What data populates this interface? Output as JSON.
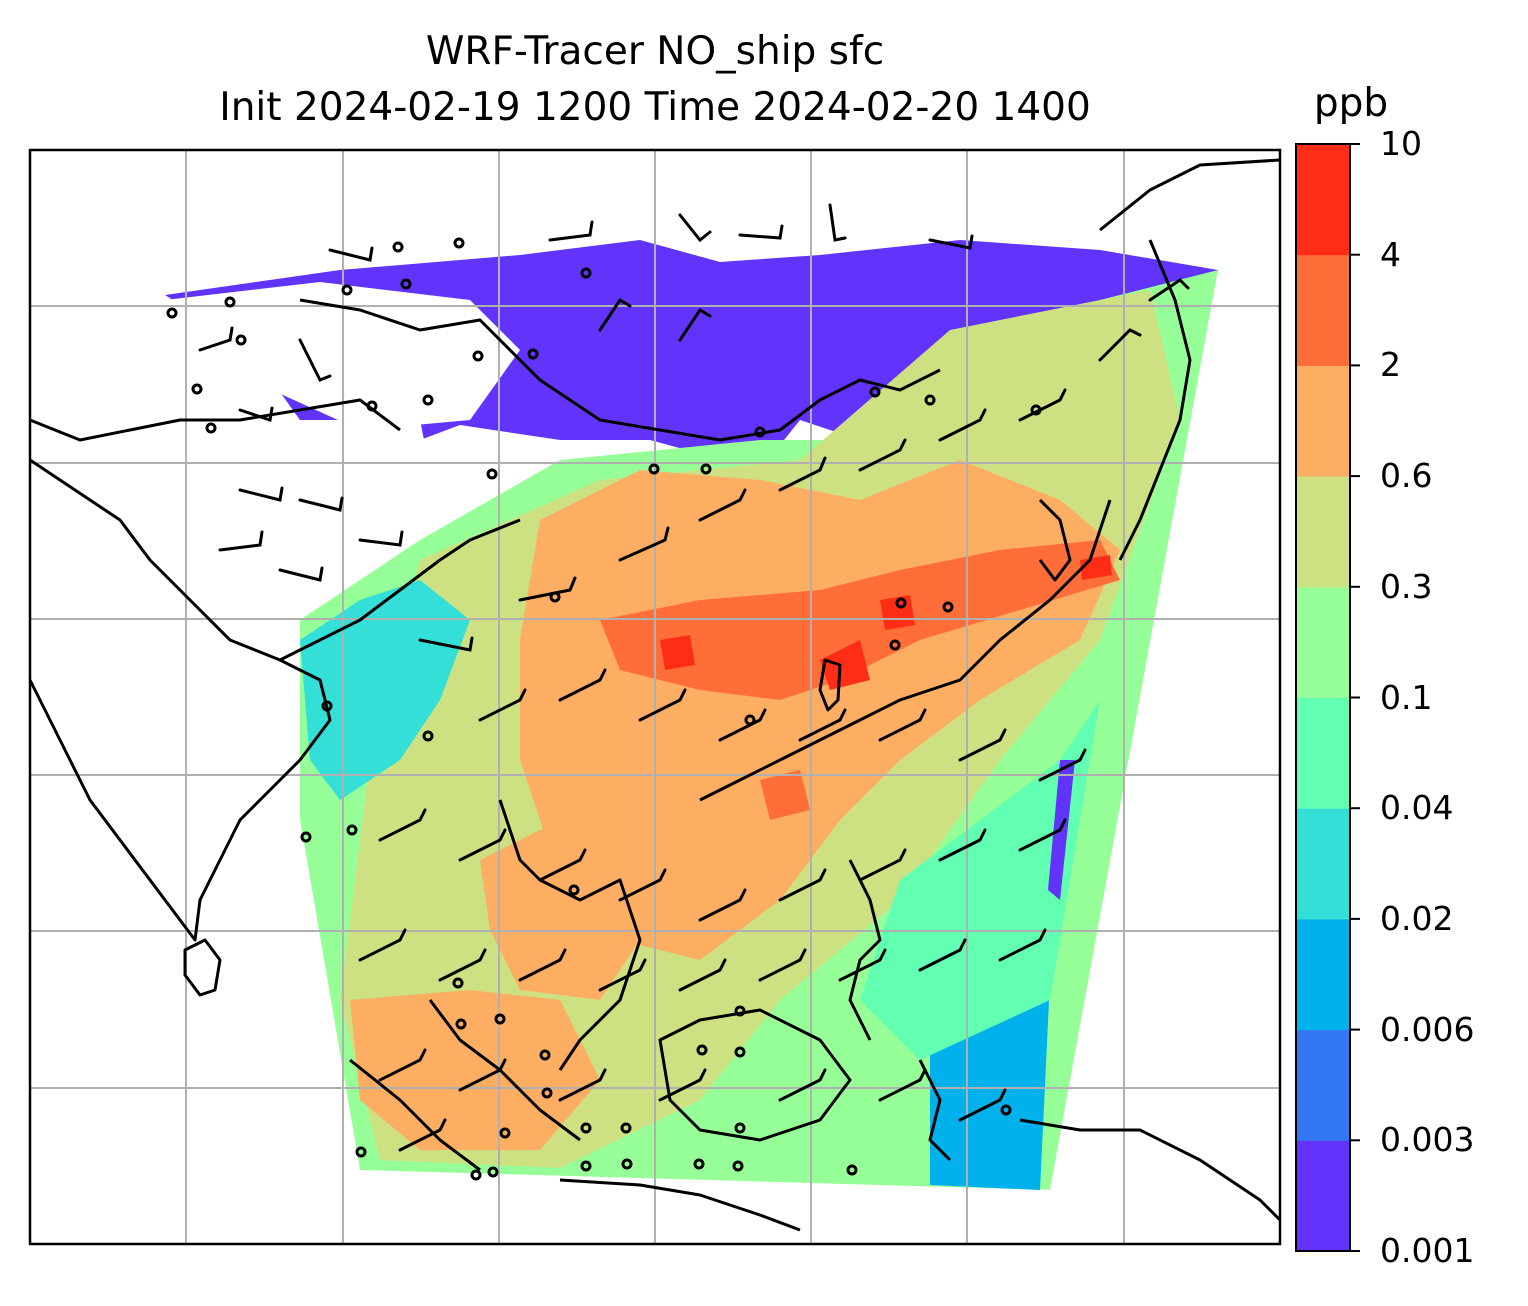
{
  "map": {
    "title_line1": "WRF-Tracer NO_ship sfc",
    "title_line2": "Init 2024-02-19 1200 Time 2024-02-20 1400",
    "variable": "NO_ship",
    "level": "sfc",
    "init": "2024-02-19 1200",
    "valid": "2024-02-20 1400",
    "gridlines": true,
    "features": [
      "coastlines",
      "wind-barbs",
      "tracer-concentration-fill"
    ]
  },
  "colorbar": {
    "unit": "ppb",
    "ticks": [
      "0.001",
      "0.003",
      "0.006",
      "0.02",
      "0.04",
      "0.1",
      "0.3",
      "0.6",
      "2",
      "4",
      "10"
    ],
    "colors": [
      "#6233fa",
      "#3377f5",
      "#00b1ec",
      "#33dfd6",
      "#62ffb2",
      "#97ff97",
      "#cde182",
      "#fdae63",
      "#ff6e38",
      "#ff2c16"
    ]
  }
}
